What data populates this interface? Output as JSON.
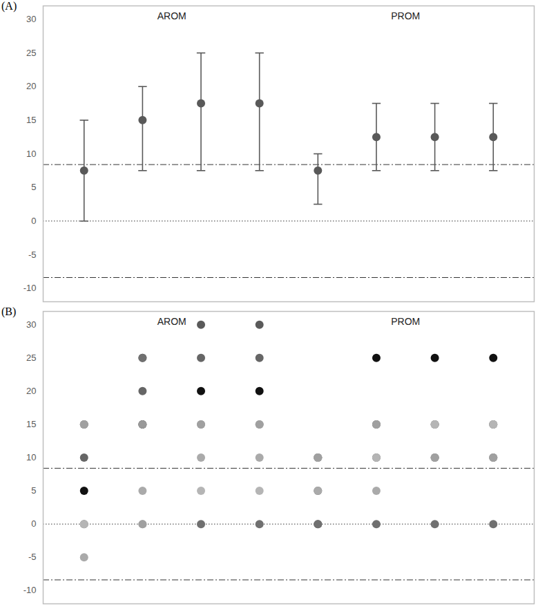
{
  "chart_data": [
    {
      "type": "errorbar",
      "title": "(A)",
      "annotations": [
        "AROM",
        "PROM"
      ],
      "categories": [
        null,
        null,
        null,
        null,
        null,
        null,
        null,
        null
      ],
      "values": [
        7.5,
        15,
        17.5,
        17.5,
        7.5,
        12.5,
        12.5,
        12.5
      ],
      "lower": [
        0,
        7.5,
        7.5,
        7.5,
        2.5,
        7.5,
        7.5,
        7.5
      ],
      "upper": [
        15,
        20,
        25,
        25,
        10,
        17.5,
        17.5,
        17.5
      ],
      "color": "#595959",
      "ylim": [
        -12,
        32
      ],
      "yticks": [
        -10,
        -5,
        0,
        5,
        10,
        15,
        20,
        25,
        30
      ],
      "reference_lines": [
        {
          "y": 0,
          "line_style": "dotted"
        },
        {
          "y": 8.4,
          "line_style": "dashdot"
        },
        {
          "y": -8.4,
          "line_style": "dashdot"
        }
      ],
      "tick_labels": "y",
      "grid": false
    },
    {
      "type": "scatter",
      "title": "(B)",
      "annotations": [
        "AROM",
        "PROM"
      ],
      "categories": [
        null,
        null,
        null,
        null,
        null,
        null,
        null,
        null
      ],
      "series": [
        {
          "color": "#111111",
          "values": [
            5,
            15,
            20,
            20,
            10,
            25,
            25,
            25
          ]
        },
        {
          "color": "#5a5a5a",
          "values": [
            15,
            25,
            30,
            30,
            0,
            15,
            15,
            15
          ]
        },
        {
          "color": "#666666",
          "values": [
            10,
            20,
            25,
            25,
            5,
            10,
            10,
            10
          ]
        },
        {
          "color": "#707070",
          "values": [
            0,
            25,
            0,
            0,
            0,
            0,
            0,
            0
          ]
        },
        {
          "color": "#999999",
          "values": [
            15,
            15,
            15,
            15,
            10,
            15,
            15,
            15
          ]
        },
        {
          "color": "#aaaaaa",
          "values": [
            -5,
            5,
            10,
            10,
            5,
            5,
            10,
            10
          ]
        },
        {
          "color": "#b5b5b5",
          "values": [
            0,
            0,
            5,
            5,
            10,
            10,
            15,
            15
          ]
        },
        {
          "color": "#a0a0a0",
          "values": [
            15,
            0,
            15,
            15,
            10,
            15,
            10,
            10
          ]
        }
      ],
      "marker": "circle",
      "ylim": [
        -12,
        32
      ],
      "yticks": [
        -10,
        -5,
        0,
        5,
        10,
        15,
        20,
        25,
        30
      ],
      "reference_lines": [
        {
          "y": 0,
          "line_style": "dotted"
        },
        {
          "y": 8.4,
          "line_style": "dashdot"
        },
        {
          "y": -8.4,
          "line_style": "dashdot"
        }
      ],
      "tick_labels": "y",
      "grid": false
    }
  ]
}
